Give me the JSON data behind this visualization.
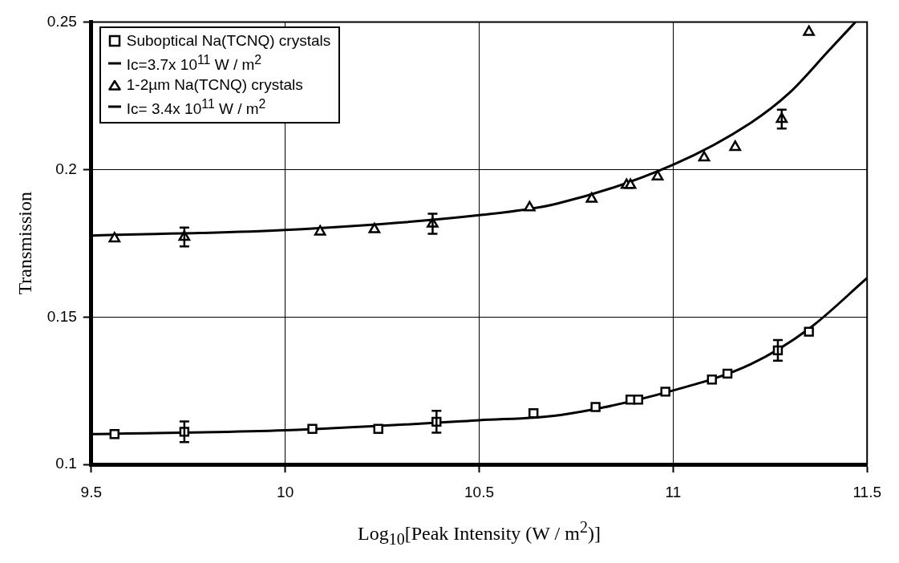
{
  "chart_data": {
    "type": "scatter",
    "xlabel": "Log$_{10}$[Peak Intensity (W / m$^{2}$)]",
    "ylabel": "Transmission",
    "xlim": [
      9.5,
      11.5
    ],
    "ylim": [
      0.1,
      0.25
    ],
    "xticks": [
      9.5,
      10,
      10.5,
      11,
      11.5
    ],
    "yticks": [
      0.1,
      0.15,
      0.2,
      0.25
    ],
    "grid": true,
    "legend": "top left",
    "series": [
      {
        "name": "Suboptical  Na(TCNQ) crystals",
        "type": "scatter",
        "marker": "square",
        "color": "#000000",
        "x": [
          9.56,
          9.74,
          10.07,
          10.24,
          10.39,
          10.64,
          10.8,
          10.89,
          10.91,
          10.98,
          11.1,
          11.14,
          11.27,
          11.35
        ],
        "values": [
          0.1103,
          0.1111,
          0.1121,
          0.1121,
          0.1145,
          0.1174,
          0.1195,
          0.122,
          0.122,
          0.1247,
          0.1288,
          0.1308,
          0.1387,
          0.145
        ],
        "errors": [
          null,
          0.0035,
          null,
          null,
          0.0037,
          null,
          null,
          null,
          null,
          null,
          null,
          null,
          0.0035,
          null
        ]
      },
      {
        "name": "Ic=3.7x 10$^{11}$ W / m$^{2}$",
        "type": "line",
        "marker": "none",
        "color": "#000000",
        "x": [
          9.5,
          10,
          10.5,
          10.71,
          11,
          11.2,
          11.35,
          11.5
        ],
        "values": [
          0.1103,
          0.1116,
          0.115,
          0.1168,
          0.1251,
          0.134,
          0.146,
          0.1632
        ]
      },
      {
        "name": "1-2µm Na(TCNQ) crystals",
        "type": "scatter",
        "marker": "triangle",
        "color": "#000000",
        "x": [
          9.56,
          9.74,
          10.09,
          10.23,
          10.38,
          10.63,
          10.79,
          10.88,
          10.89,
          10.96,
          11.08,
          11.16,
          11.28,
          11.35
        ],
        "values": [
          0.1766,
          0.1771,
          0.1789,
          0.1797,
          0.1816,
          0.1871,
          0.19,
          0.1947,
          0.1947,
          0.1976,
          0.204,
          0.2076,
          0.2171,
          0.2466
        ],
        "errors": [
          null,
          0.0032,
          null,
          null,
          0.0034,
          null,
          null,
          null,
          null,
          null,
          null,
          null,
          0.0032,
          null
        ]
      },
      {
        "name": "Ic= 3.4x 10$^{11}$ W / m$^{2}$",
        "type": "line",
        "marker": "none",
        "color": "#000000",
        "x": [
          9.5,
          10,
          10.5,
          10.7,
          11,
          11.2,
          11.3,
          11.4,
          11.47
        ],
        "values": [
          0.1776,
          0.1795,
          0.1845,
          0.1884,
          0.2016,
          0.2158,
          0.226,
          0.2401,
          0.25
        ]
      }
    ]
  }
}
